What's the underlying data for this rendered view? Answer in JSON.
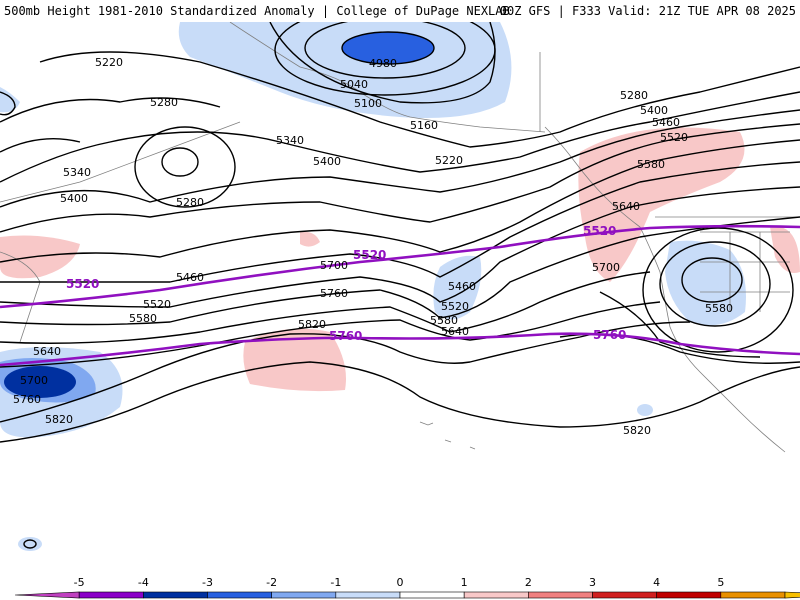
{
  "header": {
    "title": "500mb Height 1981-2010 Standardized Anomaly | College of DuPage NEXLAB",
    "valid": "00Z GFS | F333 Valid: 21Z TUE APR 08 2025"
  },
  "map": {
    "black_contour_labels": [
      "4980",
      "5040",
      "5100",
      "5160",
      "5220",
      "5220",
      "5280",
      "5280",
      "5280",
      "5340",
      "5340",
      "5400",
      "5400",
      "5400",
      "5460",
      "5460",
      "5460",
      "5520",
      "5520",
      "5520",
      "5580",
      "5580",
      "5580",
      "5580",
      "5640",
      "5640",
      "5640",
      "5700",
      "5700",
      "5700",
      "5760",
      "5760",
      "5820",
      "5820",
      "5820"
    ],
    "purple_contour_labels": [
      "5520",
      "5520",
      "5520",
      "5760",
      "5760"
    ]
  },
  "colorbar": {
    "ticks": [
      "-5",
      "-4",
      "-3",
      "-2",
      "-1",
      "0",
      "1",
      "2",
      "3",
      "4",
      "5"
    ],
    "colors": [
      "#c040c0",
      "#8b00c8",
      "#0030a0",
      "#2860e0",
      "#80a8f0",
      "#c8dcf8",
      "#ffffff",
      "#f8c8c8",
      "#f08080",
      "#d02020",
      "#c00000",
      "#e89000",
      "#f8c000"
    ]
  }
}
